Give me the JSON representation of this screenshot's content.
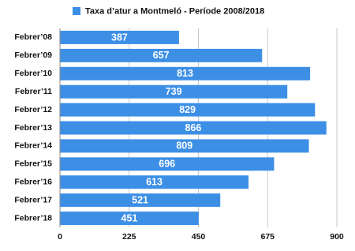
{
  "chart_data": {
    "type": "bar",
    "orientation": "horizontal",
    "series": [
      {
        "name": "Taxa d’atur a Montmeló - Període 2008/2018",
        "color": "#3d8fe6",
        "values": [
          387,
          657,
          813,
          739,
          829,
          866,
          809,
          696,
          613,
          521,
          451
        ]
      }
    ],
    "categories": [
      "Febrer’08",
      "Febrer’09",
      "Febrer’10",
      "Febrer’11",
      "Febrer’12",
      "Febrer’13",
      "Febrer’14",
      "Febrer’15",
      "Febrer’16",
      "Febrer’17",
      "Febrer’18"
    ],
    "xlim": [
      0,
      900
    ],
    "xticks": [
      0,
      225,
      450,
      675,
      900
    ],
    "grid": true,
    "legend": "top"
  }
}
